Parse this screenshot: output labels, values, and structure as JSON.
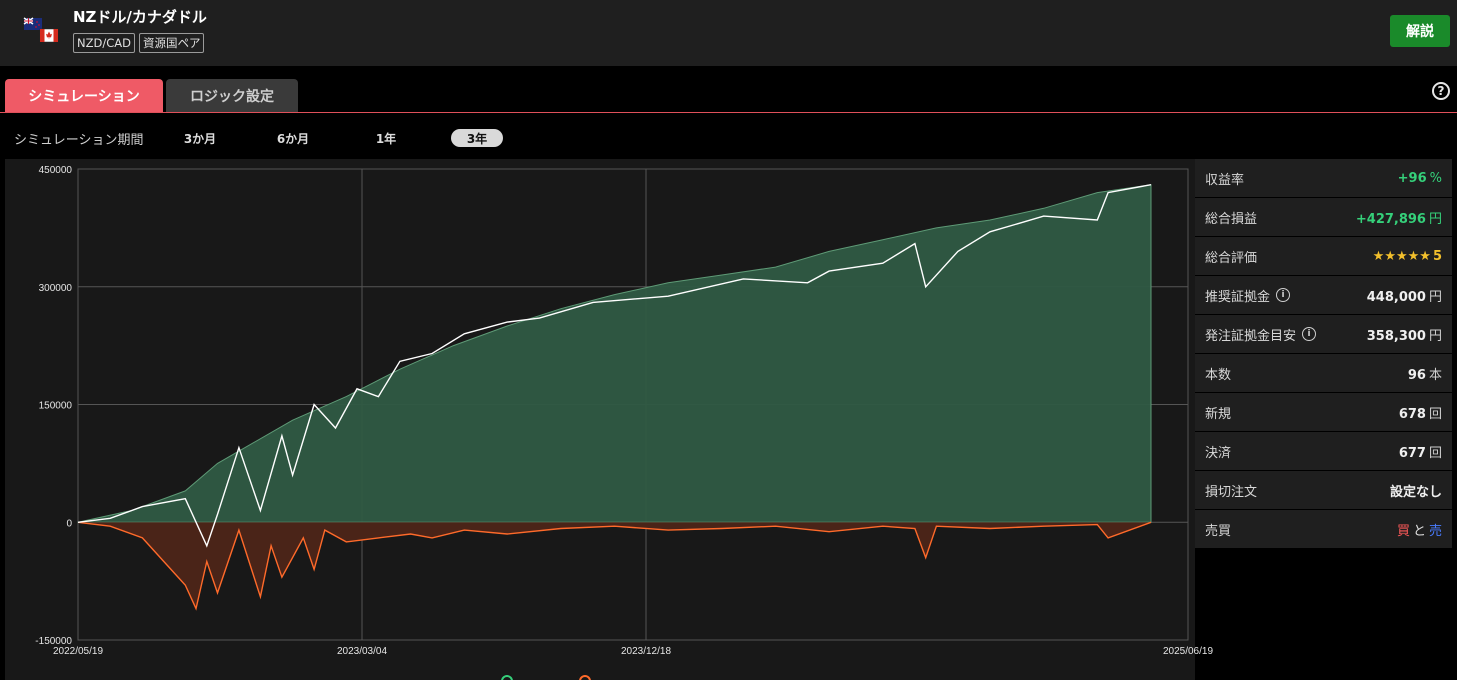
{
  "header": {
    "title": "NZドル/カナダドル",
    "tags": [
      "NZD/CAD",
      "資源国ペア"
    ],
    "explain_label": "解説"
  },
  "tabs": [
    {
      "label": "シミュレーション",
      "active": true
    },
    {
      "label": "ロジック設定",
      "active": false
    }
  ],
  "period": {
    "label": "シミュレーション期間",
    "options": [
      "3か月",
      "6か月",
      "1年",
      "3年"
    ],
    "selected": "3年"
  },
  "chart_data": {
    "type": "area",
    "x_ticks": [
      "2022/05/19",
      "2023/03/04",
      "2023/12/18",
      "2025/06/19"
    ],
    "y_ticks": [
      "450000",
      "300000",
      "150000",
      "0",
      "-150000"
    ],
    "ylim": [
      -150000,
      450000
    ],
    "grid": true,
    "series": [
      {
        "name": "",
        "color": "#2f5a43",
        "x": [
          0,
          0.05,
          0.1,
          0.13,
          0.2,
          0.25,
          0.3,
          0.35,
          0.4,
          0.45,
          0.5,
          0.55,
          0.6,
          0.65,
          0.7,
          0.75,
          0.8,
          0.85,
          0.9,
          0.95,
          1.0
        ],
        "values": [
          0,
          15000,
          40000,
          75000,
          130000,
          160000,
          195000,
          225000,
          250000,
          272000,
          290000,
          305000,
          315000,
          325000,
          345000,
          360000,
          375000,
          385000,
          400000,
          420000,
          430000
        ]
      },
      {
        "name": "",
        "color": "#ffffff",
        "x": [
          0,
          0.03,
          0.06,
          0.1,
          0.12,
          0.13,
          0.15,
          0.17,
          0.19,
          0.2,
          0.22,
          0.24,
          0.26,
          0.28,
          0.3,
          0.33,
          0.36,
          0.4,
          0.43,
          0.48,
          0.55,
          0.62,
          0.68,
          0.7,
          0.75,
          0.78,
          0.79,
          0.82,
          0.85,
          0.88,
          0.9,
          0.95,
          0.96,
          1.0
        ],
        "values": [
          0,
          5000,
          20000,
          30000,
          -30000,
          10000,
          95000,
          15000,
          110000,
          60000,
          150000,
          120000,
          170000,
          160000,
          205000,
          215000,
          240000,
          255000,
          260000,
          280000,
          288000,
          310000,
          305000,
          320000,
          330000,
          355000,
          300000,
          345000,
          370000,
          382000,
          390000,
          385000,
          420000,
          430000
        ]
      },
      {
        "name": "",
        "color": "#ff6a2a",
        "x": [
          0,
          0.03,
          0.06,
          0.08,
          0.1,
          0.11,
          0.12,
          0.13,
          0.15,
          0.17,
          0.18,
          0.19,
          0.21,
          0.22,
          0.23,
          0.25,
          0.28,
          0.31,
          0.33,
          0.36,
          0.4,
          0.45,
          0.5,
          0.55,
          0.6,
          0.65,
          0.7,
          0.75,
          0.78,
          0.79,
          0.8,
          0.85,
          0.9,
          0.95,
          0.96,
          1.0
        ],
        "values": [
          0,
          -5000,
          -20000,
          -50000,
          -80000,
          -110000,
          -50000,
          -90000,
          -10000,
          -95000,
          -30000,
          -70000,
          -20000,
          -60000,
          -10000,
          -25000,
          -20000,
          -15000,
          -20000,
          -10000,
          -15000,
          -8000,
          -5000,
          -10000,
          -8000,
          -5000,
          -12000,
          -5000,
          -8000,
          -45000,
          -5000,
          -8000,
          -5000,
          -3000,
          -20000,
          0
        ]
      }
    ]
  },
  "stats": [
    {
      "label": "収益率",
      "value": "+96",
      "unit": "%",
      "style": "green"
    },
    {
      "label": "総合損益",
      "value": "+427,896",
      "unit": "円",
      "style": "green"
    },
    {
      "label": "総合評価",
      "stars": "★★★★★",
      "value": "5",
      "style": "stars"
    },
    {
      "label": "推奨証拠金",
      "info": true,
      "value": "448,000",
      "unit": "円"
    },
    {
      "label": "発注証拠金目安",
      "info": true,
      "value": "358,300",
      "unit": "円"
    },
    {
      "label": "本数",
      "value": "96",
      "unit": "本"
    },
    {
      "label": "新規",
      "value": "678",
      "unit": "回"
    },
    {
      "label": "決済",
      "value": "677",
      "unit": "回"
    },
    {
      "label": "損切注文",
      "value": "設定なし",
      "unit": ""
    },
    {
      "label": "売買",
      "buy": "買",
      "and": "と",
      "sell": "売",
      "style": "side"
    }
  ]
}
